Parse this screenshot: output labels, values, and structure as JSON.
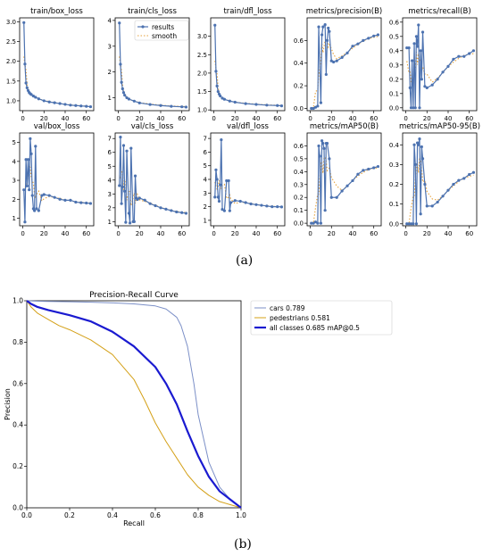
{
  "figure_a": {
    "label": "(a)",
    "legend": {
      "results": "results",
      "smooth": "smooth"
    },
    "results_color": "#4c72b0",
    "smooth_color": "#e6a23c",
    "panels": [
      {
        "title": "train/box_loss",
        "yticks": [
          "1.0",
          "1.5",
          "2.0",
          "2.5",
          "3.0"
        ],
        "ylim": [
          0.75,
          3.1
        ],
        "points": [
          [
            1,
            2.98
          ],
          [
            2,
            1.93
          ],
          [
            3,
            1.45
          ],
          [
            4,
            1.33
          ],
          [
            5,
            1.26
          ],
          [
            6,
            1.21
          ],
          [
            7,
            1.18
          ],
          [
            8,
            1.16
          ],
          [
            10,
            1.12
          ],
          [
            12,
            1.09
          ],
          [
            15,
            1.05
          ],
          [
            20,
            1.0
          ],
          [
            25,
            0.97
          ],
          [
            30,
            0.95
          ],
          [
            35,
            0.93
          ],
          [
            40,
            0.91
          ],
          [
            45,
            0.89
          ],
          [
            50,
            0.88
          ],
          [
            55,
            0.87
          ],
          [
            60,
            0.86
          ],
          [
            64,
            0.85
          ]
        ]
      },
      {
        "title": "train/cls_loss",
        "yticks": [
          "1",
          "2",
          "3",
          "4"
        ],
        "ylim": [
          0.5,
          4.1
        ],
        "points": [
          [
            1,
            3.9
          ],
          [
            2,
            2.3
          ],
          [
            3,
            1.6
          ],
          [
            4,
            1.35
          ],
          [
            5,
            1.2
          ],
          [
            6,
            1.1
          ],
          [
            8,
            1.0
          ],
          [
            10,
            0.95
          ],
          [
            15,
            0.87
          ],
          [
            20,
            0.8
          ],
          [
            30,
            0.74
          ],
          [
            40,
            0.7
          ],
          [
            50,
            0.67
          ],
          [
            60,
            0.65
          ],
          [
            64,
            0.64
          ]
        ]
      },
      {
        "title": "train/dfl_loss",
        "yticks": [
          "1.0",
          "1.5",
          "2.0",
          "2.5",
          "3.0"
        ],
        "ylim": [
          0.98,
          3.5
        ],
        "points": [
          [
            1,
            3.3
          ],
          [
            2,
            2.05
          ],
          [
            3,
            1.65
          ],
          [
            4,
            1.5
          ],
          [
            5,
            1.43
          ],
          [
            6,
            1.38
          ],
          [
            8,
            1.32
          ],
          [
            10,
            1.29
          ],
          [
            15,
            1.24
          ],
          [
            20,
            1.21
          ],
          [
            30,
            1.17
          ],
          [
            40,
            1.15
          ],
          [
            50,
            1.13
          ],
          [
            60,
            1.12
          ],
          [
            64,
            1.11
          ]
        ]
      },
      {
        "title": "metrics/precision(B)",
        "yticks": [
          "0.0",
          "0.2",
          "0.4",
          "0.6"
        ],
        "ylim": [
          -0.02,
          0.8
        ],
        "points": [
          [
            1,
            0.0
          ],
          [
            3,
            0.0
          ],
          [
            5,
            0.01
          ],
          [
            7,
            0.02
          ],
          [
            8,
            0.72
          ],
          [
            10,
            0.05
          ],
          [
            11,
            0.65
          ],
          [
            12,
            0.72
          ],
          [
            14,
            0.74
          ],
          [
            15,
            0.3
          ],
          [
            16,
            0.6
          ],
          [
            17,
            0.71
          ],
          [
            18,
            0.68
          ],
          [
            20,
            0.42
          ],
          [
            22,
            0.41
          ],
          [
            25,
            0.42
          ],
          [
            30,
            0.45
          ],
          [
            35,
            0.49
          ],
          [
            40,
            0.55
          ],
          [
            45,
            0.57
          ],
          [
            50,
            0.6
          ],
          [
            55,
            0.62
          ],
          [
            60,
            0.64
          ],
          [
            64,
            0.65
          ]
        ]
      },
      {
        "title": "metrics/recall(B)",
        "yticks": [
          "0.0",
          "0.1",
          "0.2",
          "0.3",
          "0.4",
          "0.5",
          "0.6"
        ],
        "ylim": [
          -0.02,
          0.63
        ],
        "points": [
          [
            1,
            0.42
          ],
          [
            3,
            0.42
          ],
          [
            4,
            0.14
          ],
          [
            5,
            0.0
          ],
          [
            6,
            0.33
          ],
          [
            7,
            0.0
          ],
          [
            8,
            0.45
          ],
          [
            9,
            0.0
          ],
          [
            10,
            0.5
          ],
          [
            11,
            0.43
          ],
          [
            12,
            0.58
          ],
          [
            13,
            0.0
          ],
          [
            14,
            0.4
          ],
          [
            15,
            0.2
          ],
          [
            16,
            0.53
          ],
          [
            18,
            0.15
          ],
          [
            20,
            0.14
          ],
          [
            25,
            0.16
          ],
          [
            30,
            0.2
          ],
          [
            35,
            0.25
          ],
          [
            40,
            0.29
          ],
          [
            45,
            0.34
          ],
          [
            50,
            0.36
          ],
          [
            55,
            0.36
          ],
          [
            60,
            0.38
          ],
          [
            64,
            0.4
          ]
        ]
      },
      {
        "title": "val/box_loss",
        "yticks": [
          "1",
          "2",
          "3",
          "4",
          "5"
        ],
        "ylim": [
          0.6,
          5.5
        ],
        "points": [
          [
            1,
            2.5
          ],
          [
            2,
            0.8
          ],
          [
            3,
            4.1
          ],
          [
            4,
            2.7
          ],
          [
            5,
            4.1
          ],
          [
            6,
            2.5
          ],
          [
            7,
            5.2
          ],
          [
            8,
            4.4
          ],
          [
            9,
            2.2
          ],
          [
            10,
            1.5
          ],
          [
            11,
            1.4
          ],
          [
            12,
            4.8
          ],
          [
            13,
            1.5
          ],
          [
            15,
            1.4
          ],
          [
            18,
            2.2
          ],
          [
            20,
            2.25
          ],
          [
            25,
            2.2
          ],
          [
            30,
            2.1
          ],
          [
            35,
            2.0
          ],
          [
            40,
            1.95
          ],
          [
            45,
            1.95
          ],
          [
            50,
            1.85
          ],
          [
            55,
            1.82
          ],
          [
            60,
            1.8
          ],
          [
            64,
            1.78
          ]
        ]
      },
      {
        "title": "val/cls_loss",
        "yticks": [
          "1",
          "2",
          "3",
          "4",
          "5",
          "6",
          "7"
        ],
        "ylim": [
          0.7,
          7.4
        ],
        "points": [
          [
            1,
            3.6
          ],
          [
            2,
            7.1
          ],
          [
            3,
            2.3
          ],
          [
            4,
            3.5
          ],
          [
            5,
            6.5
          ],
          [
            6,
            3.2
          ],
          [
            7,
            0.95
          ],
          [
            8,
            6.1
          ],
          [
            10,
            1.6
          ],
          [
            11,
            0.9
          ],
          [
            12,
            6.3
          ],
          [
            14,
            1.0
          ],
          [
            15,
            1.0
          ],
          [
            16,
            4.3
          ],
          [
            17,
            2.7
          ],
          [
            18,
            2.6
          ],
          [
            20,
            2.7
          ],
          [
            25,
            2.55
          ],
          [
            30,
            2.3
          ],
          [
            35,
            2.15
          ],
          [
            40,
            2.0
          ],
          [
            45,
            1.9
          ],
          [
            50,
            1.8
          ],
          [
            55,
            1.7
          ],
          [
            60,
            1.65
          ],
          [
            64,
            1.6
          ]
        ]
      },
      {
        "title": "val/dfl_loss",
        "yticks": [
          "1",
          "2",
          "3",
          "4",
          "5",
          "6",
          "7"
        ],
        "ylim": [
          0.6,
          7.4
        ],
        "points": [
          [
            1,
            2.7
          ],
          [
            2,
            4.7
          ],
          [
            3,
            4.0
          ],
          [
            4,
            2.7
          ],
          [
            5,
            2.4
          ],
          [
            6,
            3.6
          ],
          [
            7,
            6.9
          ],
          [
            8,
            1.8
          ],
          [
            10,
            1.7
          ],
          [
            12,
            3.9
          ],
          [
            14,
            3.9
          ],
          [
            15,
            1.7
          ],
          [
            16,
            2.3
          ],
          [
            20,
            2.45
          ],
          [
            25,
            2.4
          ],
          [
            30,
            2.3
          ],
          [
            35,
            2.2
          ],
          [
            40,
            2.15
          ],
          [
            45,
            2.1
          ],
          [
            50,
            2.05
          ],
          [
            55,
            2.0
          ],
          [
            60,
            2.0
          ],
          [
            64,
            1.98
          ]
        ]
      },
      {
        "title": "metrics/mAP50(B)",
        "yticks": [
          "0.0",
          "0.1",
          "0.2",
          "0.3",
          "0.4",
          "0.5",
          "0.6"
        ],
        "ylim": [
          -0.02,
          0.7
        ],
        "points": [
          [
            1,
            0.0
          ],
          [
            3,
            0.0
          ],
          [
            5,
            0.01
          ],
          [
            7,
            0.0
          ],
          [
            8,
            0.6
          ],
          [
            9,
            0.52
          ],
          [
            10,
            0.0
          ],
          [
            11,
            0.64
          ],
          [
            12,
            0.62
          ],
          [
            13,
            0.58
          ],
          [
            14,
            0.1
          ],
          [
            15,
            0.62
          ],
          [
            16,
            0.62
          ],
          [
            18,
            0.5
          ],
          [
            20,
            0.2
          ],
          [
            25,
            0.2
          ],
          [
            30,
            0.25
          ],
          [
            35,
            0.29
          ],
          [
            40,
            0.33
          ],
          [
            45,
            0.38
          ],
          [
            50,
            0.41
          ],
          [
            55,
            0.42
          ],
          [
            60,
            0.43
          ],
          [
            64,
            0.44
          ]
        ]
      },
      {
        "title": "metrics/mAP50-95(B)",
        "yticks": [
          "0.0",
          "0.1",
          "0.2",
          "0.3",
          "0.4"
        ],
        "ylim": [
          -0.01,
          0.46
        ],
        "points": [
          [
            1,
            0.0
          ],
          [
            3,
            0.0
          ],
          [
            5,
            0.0
          ],
          [
            7,
            0.0
          ],
          [
            8,
            0.4
          ],
          [
            9,
            0.3
          ],
          [
            10,
            0.0
          ],
          [
            11,
            0.41
          ],
          [
            12,
            0.4
          ],
          [
            13,
            0.43
          ],
          [
            14,
            0.05
          ],
          [
            15,
            0.39
          ],
          [
            16,
            0.33
          ],
          [
            18,
            0.2
          ],
          [
            20,
            0.09
          ],
          [
            25,
            0.09
          ],
          [
            30,
            0.11
          ],
          [
            35,
            0.14
          ],
          [
            40,
            0.17
          ],
          [
            45,
            0.2
          ],
          [
            50,
            0.22
          ],
          [
            55,
            0.23
          ],
          [
            60,
            0.25
          ],
          [
            64,
            0.26
          ]
        ]
      }
    ]
  },
  "figure_b": {
    "label": "(b)",
    "title": "Precision-Recall Curve",
    "xlabel": "Recall",
    "ylabel": "Precision",
    "xticks": [
      "0.0",
      "0.2",
      "0.4",
      "0.6",
      "0.8",
      "1.0"
    ],
    "yticks": [
      "0.0",
      "0.2",
      "0.4",
      "0.6",
      "0.8",
      "1.0"
    ],
    "legend": [
      "cars 0.789",
      "pedestrians 0.581",
      "all classes 0.685 mAP@0.5"
    ]
  },
  "chart_data": [
    {
      "type": "line",
      "title": "train/box_loss",
      "series": [
        {
          "name": "results"
        },
        {
          "name": "smooth"
        }
      ],
      "x_range": [
        0,
        64
      ]
    },
    {
      "type": "line",
      "title": "Precision-Recall Curve",
      "xlabel": "Recall",
      "ylabel": "Precision",
      "xlim": [
        0,
        1
      ],
      "ylim": [
        0,
        1
      ],
      "legend_position": "outside right",
      "series": [
        {
          "name": "cars 0.789",
          "color": "#7b8fc7",
          "x": [
            0.0,
            0.05,
            0.1,
            0.2,
            0.3,
            0.4,
            0.5,
            0.6,
            0.65,
            0.7,
            0.72,
            0.75,
            0.78,
            0.8,
            0.85,
            0.9,
            0.95,
            1.0
          ],
          "y": [
            1.0,
            0.998,
            0.997,
            0.995,
            0.993,
            0.99,
            0.985,
            0.975,
            0.96,
            0.92,
            0.88,
            0.78,
            0.6,
            0.45,
            0.22,
            0.1,
            0.04,
            0.0
          ]
        },
        {
          "name": "pedestrians 0.581",
          "color": "#d4a017",
          "x": [
            0.0,
            0.02,
            0.05,
            0.1,
            0.15,
            0.2,
            0.3,
            0.4,
            0.5,
            0.55,
            0.6,
            0.65,
            0.7,
            0.75,
            0.8,
            0.85,
            0.9,
            0.95,
            1.0
          ],
          "y": [
            1.0,
            0.97,
            0.94,
            0.91,
            0.88,
            0.86,
            0.81,
            0.74,
            0.62,
            0.52,
            0.41,
            0.32,
            0.24,
            0.16,
            0.1,
            0.06,
            0.03,
            0.015,
            0.0
          ]
        },
        {
          "name": "all classes 0.685 mAP@0.5",
          "color": "#1a1ad0",
          "x": [
            0.0,
            0.02,
            0.05,
            0.1,
            0.2,
            0.3,
            0.4,
            0.5,
            0.6,
            0.65,
            0.7,
            0.75,
            0.8,
            0.85,
            0.9,
            0.95,
            1.0
          ],
          "y": [
            1.0,
            0.985,
            0.97,
            0.955,
            0.93,
            0.9,
            0.85,
            0.78,
            0.68,
            0.6,
            0.5,
            0.37,
            0.25,
            0.15,
            0.08,
            0.04,
            0.0
          ]
        }
      ]
    }
  ]
}
